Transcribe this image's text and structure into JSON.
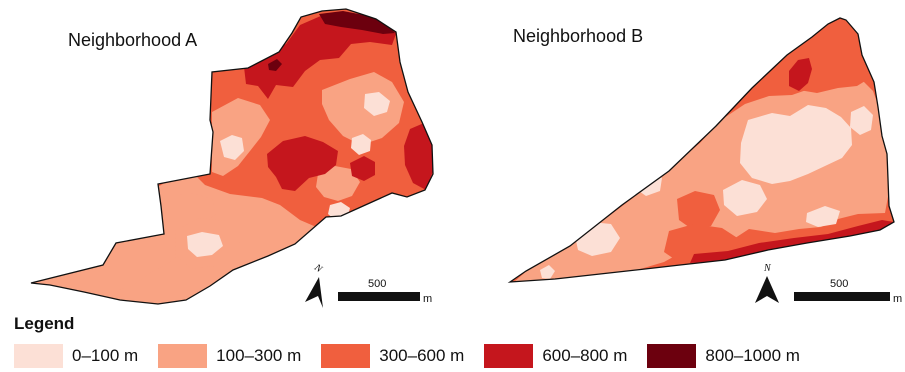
{
  "panels": [
    {
      "title": "Neighborhood A"
    },
    {
      "title": "Neighborhood B"
    }
  ],
  "scale_bar": {
    "value_label": "500",
    "unit_label": "m"
  },
  "north_arrow": {
    "label": "N"
  },
  "legend": {
    "title": "Legend",
    "items": [
      {
        "label": "0–100 m",
        "color": "#FCE0D6"
      },
      {
        "label": "100–300 m",
        "color": "#F9A383"
      },
      {
        "label": "300–600 m",
        "color": "#F05F3E"
      },
      {
        "label": "600–800 m",
        "color": "#C5161D"
      },
      {
        "label": "800–1000 m",
        "color": "#6C000E"
      }
    ]
  }
}
